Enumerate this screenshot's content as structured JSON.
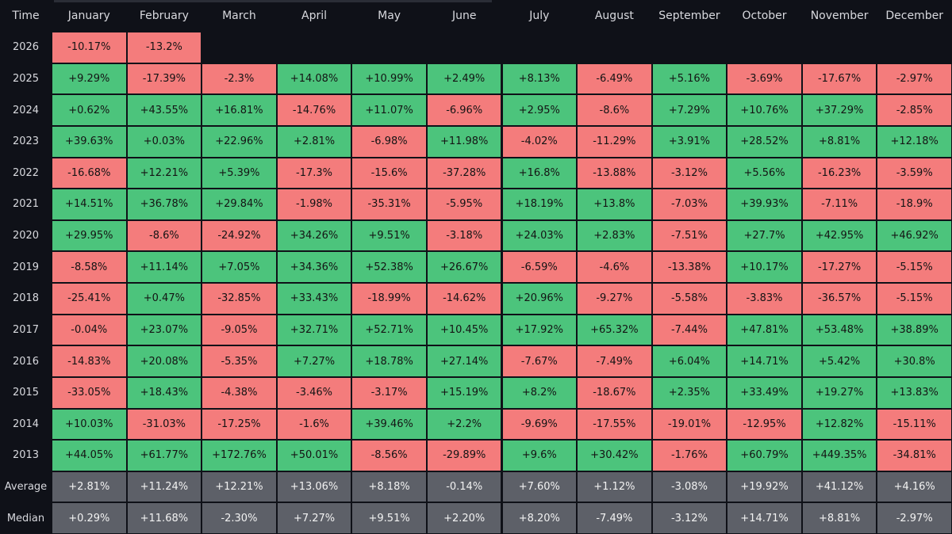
{
  "table": {
    "header": [
      "Time",
      "January",
      "February",
      "March",
      "April",
      "May",
      "June",
      "July",
      "August",
      "September",
      "October",
      "November",
      "December"
    ],
    "rows": [
      {
        "label": "2026",
        "cells": [
          "-10.17%",
          "-13.2%"
        ]
      },
      {
        "label": "2025",
        "cells": [
          "+9.29%",
          "-17.39%",
          "-2.3%",
          "+14.08%",
          "+10.99%",
          "+2.49%",
          "+8.13%",
          "-6.49%",
          "+5.16%",
          "-3.69%",
          "-17.67%",
          "-2.97%"
        ]
      },
      {
        "label": "2024",
        "cells": [
          "+0.62%",
          "+43.55%",
          "+16.81%",
          "-14.76%",
          "+11.07%",
          "-6.96%",
          "+2.95%",
          "-8.6%",
          "+7.29%",
          "+10.76%",
          "+37.29%",
          "-2.85%"
        ]
      },
      {
        "label": "2023",
        "cells": [
          "+39.63%",
          "+0.03%",
          "+22.96%",
          "+2.81%",
          "-6.98%",
          "+11.98%",
          "-4.02%",
          "-11.29%",
          "+3.91%",
          "+28.52%",
          "+8.81%",
          "+12.18%"
        ]
      },
      {
        "label": "2022",
        "cells": [
          "-16.68%",
          "+12.21%",
          "+5.39%",
          "-17.3%",
          "-15.6%",
          "-37.28%",
          "+16.8%",
          "-13.88%",
          "-3.12%",
          "+5.56%",
          "-16.23%",
          "-3.59%"
        ]
      },
      {
        "label": "2021",
        "cells": [
          "+14.51%",
          "+36.78%",
          "+29.84%",
          "-1.98%",
          "-35.31%",
          "-5.95%",
          "+18.19%",
          "+13.8%",
          "-7.03%",
          "+39.93%",
          "-7.11%",
          "-18.9%"
        ]
      },
      {
        "label": "2020",
        "cells": [
          "+29.95%",
          "-8.6%",
          "-24.92%",
          "+34.26%",
          "+9.51%",
          "-3.18%",
          "+24.03%",
          "+2.83%",
          "-7.51%",
          "+27.7%",
          "+42.95%",
          "+46.92%"
        ]
      },
      {
        "label": "2019",
        "cells": [
          "-8.58%",
          "+11.14%",
          "+7.05%",
          "+34.36%",
          "+52.38%",
          "+26.67%",
          "-6.59%",
          "-4.6%",
          "-13.38%",
          "+10.17%",
          "-17.27%",
          "-5.15%"
        ]
      },
      {
        "label": "2018",
        "cells": [
          "-25.41%",
          "+0.47%",
          "-32.85%",
          "+33.43%",
          "-18.99%",
          "-14.62%",
          "+20.96%",
          "-9.27%",
          "-5.58%",
          "-3.83%",
          "-36.57%",
          "-5.15%"
        ]
      },
      {
        "label": "2017",
        "cells": [
          "-0.04%",
          "+23.07%",
          "-9.05%",
          "+32.71%",
          "+52.71%",
          "+10.45%",
          "+17.92%",
          "+65.32%",
          "-7.44%",
          "+47.81%",
          "+53.48%",
          "+38.89%"
        ]
      },
      {
        "label": "2016",
        "cells": [
          "-14.83%",
          "+20.08%",
          "-5.35%",
          "+7.27%",
          "+18.78%",
          "+27.14%",
          "-7.67%",
          "-7.49%",
          "+6.04%",
          "+14.71%",
          "+5.42%",
          "+30.8%"
        ]
      },
      {
        "label": "2015",
        "cells": [
          "-33.05%",
          "+18.43%",
          "-4.38%",
          "-3.46%",
          "-3.17%",
          "+15.19%",
          "+8.2%",
          "-18.67%",
          "+2.35%",
          "+33.49%",
          "+19.27%",
          "+13.83%"
        ]
      },
      {
        "label": "2014",
        "cells": [
          "+10.03%",
          "-31.03%",
          "-17.25%",
          "-1.6%",
          "+39.46%",
          "+2.2%",
          "-9.69%",
          "-17.55%",
          "-19.01%",
          "-12.95%",
          "+12.82%",
          "-15.11%"
        ]
      },
      {
        "label": "2013",
        "cells": [
          "+44.05%",
          "+61.77%",
          "+172.76%",
          "+50.01%",
          "-8.56%",
          "-29.89%",
          "+9.6%",
          "+30.42%",
          "-1.76%",
          "+60.79%",
          "+449.35%",
          "-34.81%"
        ]
      }
    ],
    "summary_rows": [
      {
        "label": "Average",
        "cells": [
          "+2.81%",
          "+11.24%",
          "+12.21%",
          "+13.06%",
          "+8.18%",
          "-0.14%",
          "+7.60%",
          "+1.12%",
          "-3.08%",
          "+19.92%",
          "+41.12%",
          "+4.16%"
        ]
      },
      {
        "label": "Median",
        "cells": [
          "+0.29%",
          "+11.68%",
          "-2.30%",
          "+7.27%",
          "+9.51%",
          "+2.20%",
          "+8.20%",
          "-7.49%",
          "-3.12%",
          "+14.71%",
          "+8.81%",
          "-2.97%"
        ]
      }
    ],
    "colors": {
      "positive": "#4cc47c",
      "negative": "#f47c7c",
      "summary": "#5d6068"
    }
  }
}
